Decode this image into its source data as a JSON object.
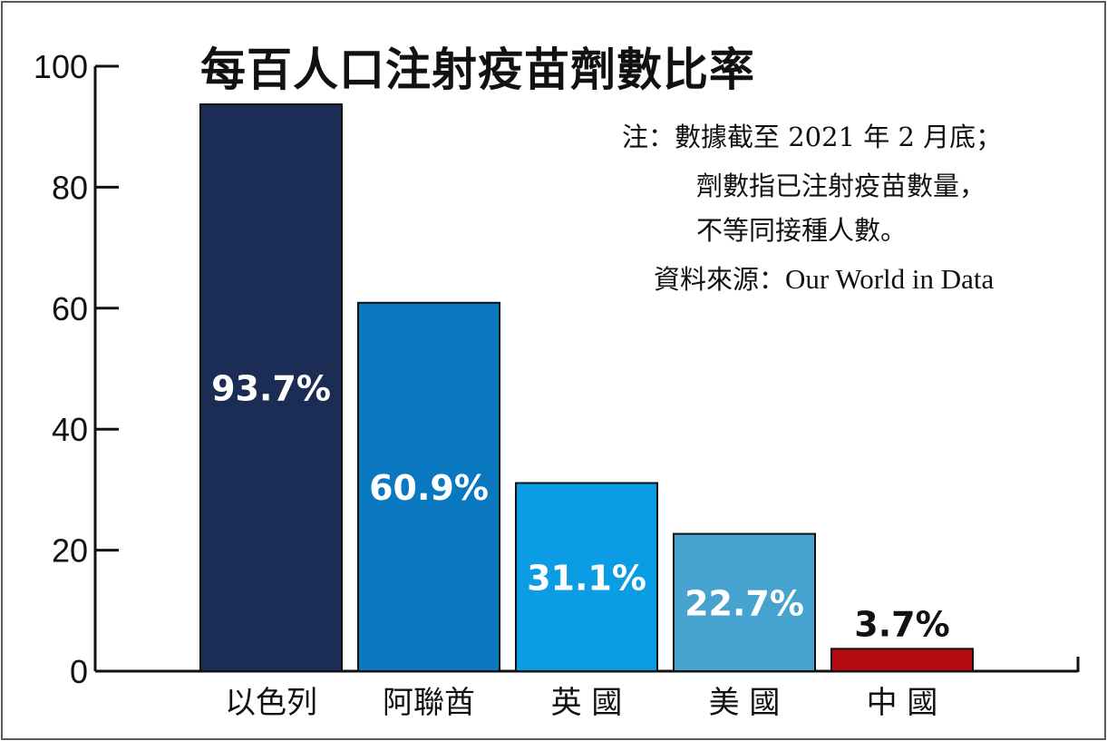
{
  "chart_data": {
    "type": "bar",
    "title": "每百人口注射疫苗劑數比率",
    "categories": [
      "以色列",
      "阿聯酋",
      "英 國",
      "美 國",
      "中 國"
    ],
    "values": [
      93.7,
      60.9,
      31.1,
      22.7,
      3.7
    ],
    "data_labels": [
      "93.7%",
      "60.9%",
      "31.1%",
      "22.7%",
      "3.7%"
    ],
    "colors": [
      "#1b2d55",
      "#0a78c0",
      "#0a9de4",
      "#46a2cf",
      "#b30a12"
    ],
    "ylim": [
      0,
      100
    ],
    "yticks": [
      0,
      20,
      40,
      60,
      80,
      100
    ],
    "xlabel": "",
    "ylabel": "",
    "grid": false
  },
  "notes": {
    "line1": "注：數據截至 2021 年 2 月底；",
    "line2": "劑數指已注射疫苗數量，",
    "line3": "不等同接種人數。"
  },
  "source": {
    "label": "資料來源：",
    "value": "Our World in Data"
  }
}
